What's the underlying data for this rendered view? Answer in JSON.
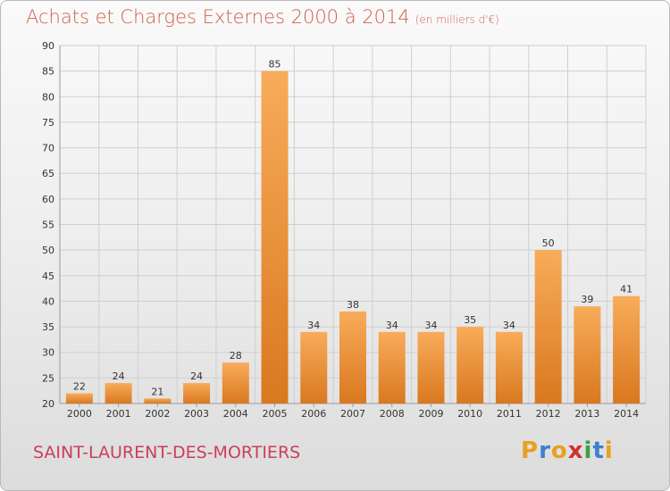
{
  "header": {
    "title": "Achats et Charges Externes 2000 à 2014",
    "unit": "(en milliers d'€)"
  },
  "footer": {
    "location": "SAINT-LAURENT-DES-MORTIERS",
    "brand": "Proxiti",
    "brand_letters": [
      {
        "char": "P",
        "color": "#e8a020"
      },
      {
        "char": "r",
        "color": "#3f7fd0"
      },
      {
        "char": "o",
        "color": "#e8a020"
      },
      {
        "char": "x",
        "color": "#d03030"
      },
      {
        "char": "i",
        "color": "#40a040"
      },
      {
        "char": "t",
        "color": "#3f7fd0"
      },
      {
        "char": "i",
        "color": "#e8a020"
      }
    ]
  },
  "colors": {
    "bar_light": "#f8ac5a",
    "bar_dark": "#d9781f",
    "grid": "#cfcfcf"
  },
  "chart_data": {
    "type": "bar",
    "title": "Achats et Charges Externes 2000 à 2014",
    "subtitle": "(en milliers d'€)",
    "xlabel": "",
    "ylabel": "",
    "ylim": [
      20,
      90
    ],
    "yticks": [
      20,
      25,
      30,
      35,
      40,
      45,
      50,
      55,
      60,
      65,
      70,
      75,
      80,
      85,
      90
    ],
    "grid": true,
    "categories": [
      "2000",
      "2001",
      "2002",
      "2003",
      "2004",
      "2005",
      "2006",
      "2007",
      "2008",
      "2009",
      "2010",
      "2011",
      "2012",
      "2013",
      "2014"
    ],
    "values": [
      22,
      24,
      21,
      24,
      28,
      85,
      34,
      38,
      34,
      34,
      35,
      34,
      50,
      39,
      41
    ]
  }
}
